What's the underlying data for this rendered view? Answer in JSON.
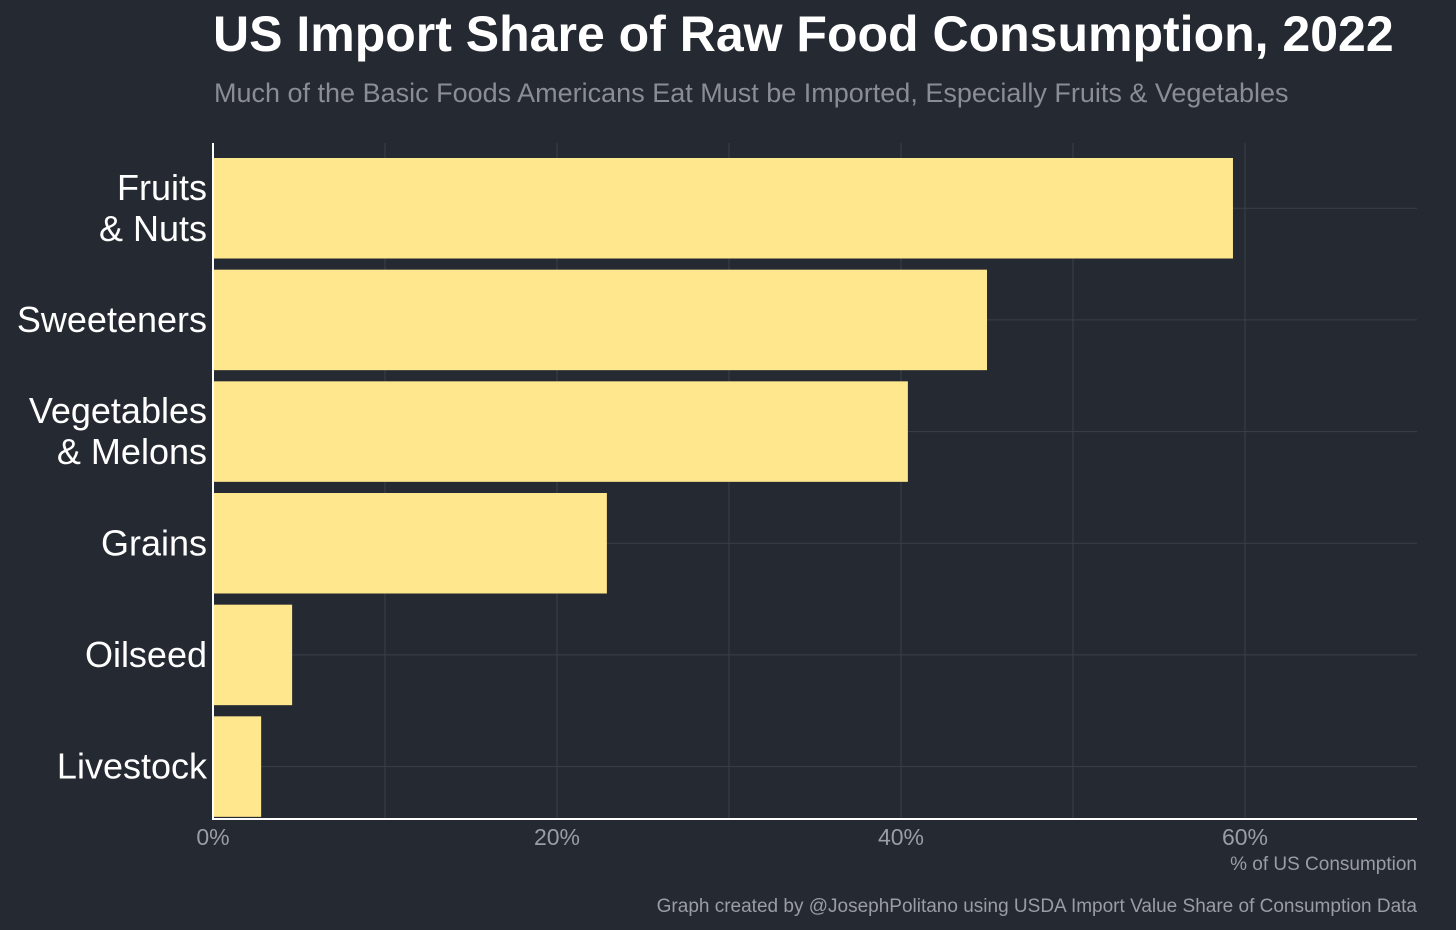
{
  "header": {
    "title": "US Import Share of Raw Food Consumption, 2022",
    "subtitle": "Much of the Basic Foods Americans Eat Must be Imported, Especially Fruits & Vegetables"
  },
  "footer": {
    "caption": "Graph created by @JosephPolitano using USDA Import Value Share of Consumption Data"
  },
  "colors": {
    "background": "#252931",
    "bar": "#FFE78E",
    "grid": "#3b3f47",
    "axis": "#ffffff"
  },
  "chart_data": {
    "type": "bar",
    "orientation": "horizontal",
    "title": "US Import Share of Raw Food Consumption, 2022",
    "subtitle": "Much of the Basic Foods Americans Eat Must be Imported, Especially Fruits & Vegetables",
    "xlabel": "% of US Consumption",
    "ylabel": "",
    "categories": [
      [
        "Fruits",
        "& Nuts"
      ],
      [
        "Sweeteners"
      ],
      [
        "Vegetables",
        "& Melons"
      ],
      [
        "Grains"
      ],
      [
        "Oilseed"
      ],
      [
        "Livestock"
      ]
    ],
    "values": [
      59.3,
      45.0,
      40.4,
      22.9,
      4.6,
      2.8
    ],
    "unit": "%",
    "xlim": [
      0,
      70
    ],
    "xticks": [
      0,
      20,
      40,
      60
    ],
    "xtick_labels": [
      "0%",
      "20%",
      "40%",
      "60%"
    ],
    "grid": true,
    "legend": "none"
  }
}
